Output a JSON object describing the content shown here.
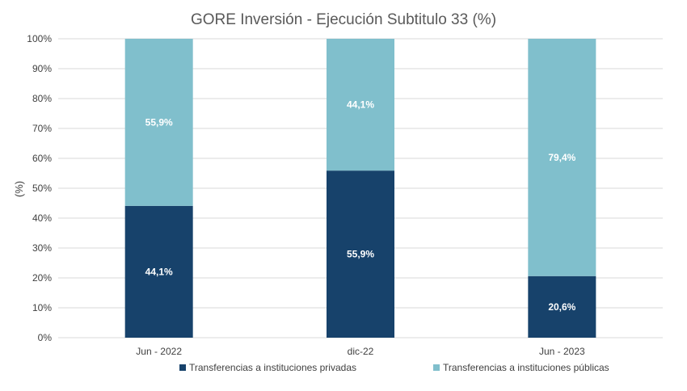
{
  "chart_data": {
    "type": "bar",
    "stacked": true,
    "title": "GORE Inversión - Ejecución Subtitulo 33 (%)",
    "ylabel": "(%)",
    "xlabel": "",
    "ylim": [
      0,
      100
    ],
    "yticks": [
      0,
      10,
      20,
      30,
      40,
      50,
      60,
      70,
      80,
      90,
      100
    ],
    "ytick_suffix": "%",
    "grid": true,
    "legend_position": "bottom",
    "categories": [
      "Jun - 2022",
      "dic-22",
      "Jun - 2023"
    ],
    "series": [
      {
        "name": "Transferencias a instituciones privadas",
        "color": "#17426b",
        "values": [
          44.1,
          55.9,
          20.6
        ],
        "labels": [
          "44,1%",
          "55,9%",
          "20,6%"
        ]
      },
      {
        "name": "Transferencias a instituciones públicas",
        "color": "#80bfcc",
        "values": [
          55.9,
          44.1,
          79.4
        ],
        "labels": [
          "55,9%",
          "44,1%",
          "79,4%"
        ]
      }
    ]
  }
}
